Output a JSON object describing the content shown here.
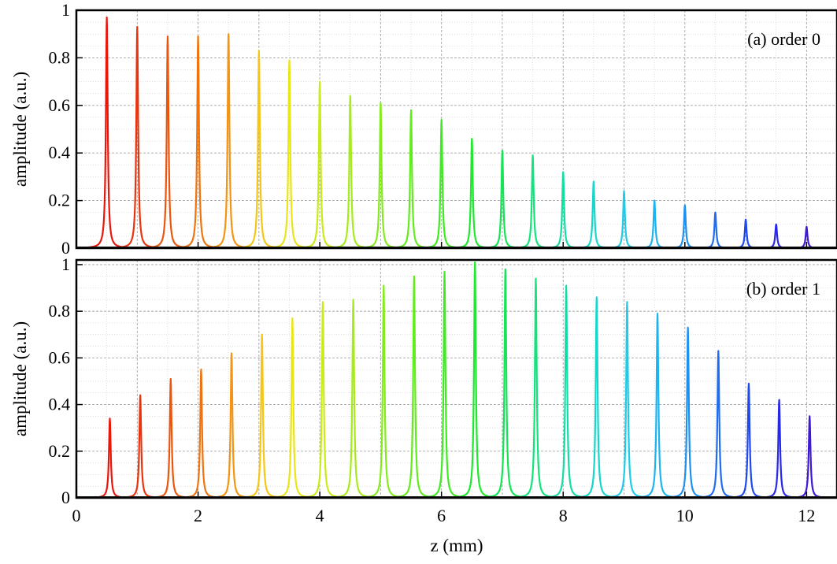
{
  "chart_data": [
    {
      "type": "line",
      "annotation": "(a) order 0",
      "xlabel": "",
      "ylabel": "amplitude (a.u.)",
      "xlim": [
        0,
        12.5
      ],
      "ylim": [
        0,
        1
      ],
      "grid": true,
      "peaks": {
        "z": [
          0.5,
          1.0,
          1.5,
          2.0,
          2.5,
          3.0,
          3.5,
          4.0,
          4.5,
          5.0,
          5.5,
          6.0,
          6.5,
          7.0,
          7.5,
          8.0,
          8.5,
          9.0,
          9.5,
          10.0,
          10.5,
          11.0,
          11.5,
          12.0
        ],
        "amplitude": [
          0.97,
          0.93,
          0.89,
          0.89,
          0.9,
          0.83,
          0.79,
          0.7,
          0.64,
          0.61,
          0.58,
          0.54,
          0.46,
          0.41,
          0.39,
          0.32,
          0.28,
          0.24,
          0.2,
          0.18,
          0.15,
          0.12,
          0.1,
          0.09
        ]
      },
      "xticks": [],
      "yticks": [
        "0",
        "0.2",
        "0.4",
        "0.6",
        "0.8",
        "1"
      ]
    },
    {
      "type": "line",
      "annotation": "(b) order 1",
      "xlabel": "z (mm)",
      "ylabel": "amplitude (a.u.)",
      "xlim": [
        0,
        12.5
      ],
      "ylim": [
        0,
        1.02
      ],
      "grid": true,
      "peaks": {
        "z": [
          0.55,
          1.05,
          1.55,
          2.05,
          2.55,
          3.05,
          3.55,
          4.05,
          4.55,
          5.05,
          5.55,
          6.05,
          6.55,
          7.05,
          7.55,
          8.05,
          8.55,
          9.05,
          9.55,
          10.05,
          10.55,
          11.05,
          11.55,
          12.05
        ],
        "amplitude": [
          0.34,
          0.44,
          0.51,
          0.55,
          0.62,
          0.7,
          0.77,
          0.84,
          0.85,
          0.91,
          0.95,
          0.97,
          1.01,
          0.98,
          0.94,
          0.91,
          0.86,
          0.84,
          0.79,
          0.73,
          0.63,
          0.49,
          0.42,
          0.35
        ]
      },
      "xticks": [
        "0",
        "2",
        "4",
        "6",
        "8",
        "10",
        "12"
      ],
      "yticks": [
        "0",
        "0.2",
        "0.4",
        "0.6",
        "0.8",
        "1"
      ]
    }
  ],
  "colors": {
    "grid": "#9a9a9a",
    "axis": "#000000",
    "palette": [
      "#e8160c",
      "#ea330c",
      "#ec560c",
      "#ee7410",
      "#f49412",
      "#f6c614",
      "#eae418",
      "#c8ec18",
      "#a6ec1a",
      "#84ec1c",
      "#62ec1e",
      "#3eec20",
      "#20e830",
      "#14e456",
      "#12e47c",
      "#14dca4",
      "#18d6ca",
      "#1ccce8",
      "#1eb4f0",
      "#1e90f0",
      "#1e6cf0",
      "#1e48ec",
      "#2828e8",
      "#4018d8"
    ]
  }
}
